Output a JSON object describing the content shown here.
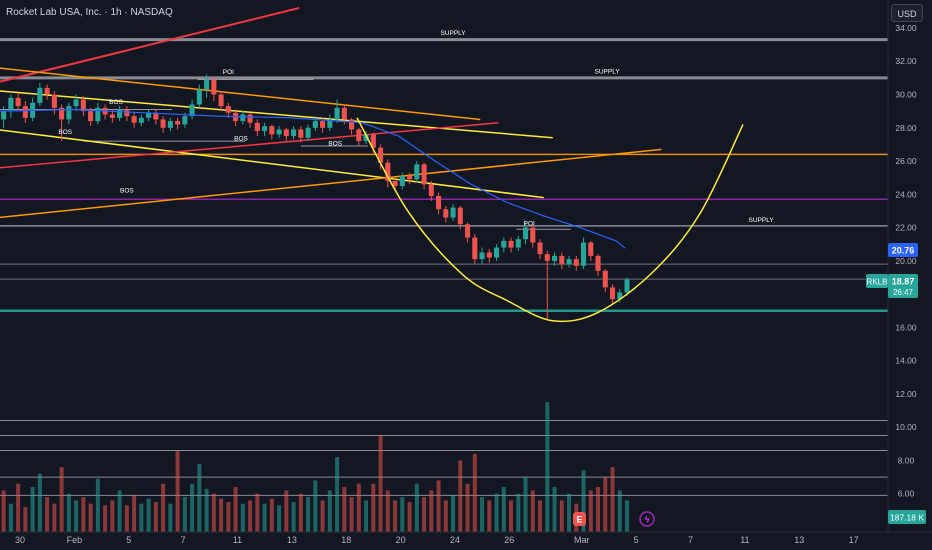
{
  "header": {
    "title": "Rocket Lab USA, Inc. · 1h · NASDAQ"
  },
  "currency": "USD",
  "colors": {
    "background": "#131722",
    "up": "#26a69a",
    "down": "#ef5350",
    "supply_line": "#9598a1",
    "orange_line": "#ff9800",
    "yellow_line": "#ffeb3b",
    "red_line": "#f23645",
    "magenta_line": "#9c27b0",
    "blue_ma": "#2962ff",
    "support_line": "#26a69a"
  },
  "chart_data": {
    "type": "candlestick",
    "symbol": "RKLB",
    "last_price": "18.87",
    "countdown": "26:47",
    "ma_value": "20.76",
    "y_axis": {
      "range": [
        4.6,
        35.2
      ],
      "ticks": [
        "34.00",
        "32.00",
        "30.00",
        "28.00",
        "26.00",
        "24.00",
        "22.00",
        "20.00",
        "18.00",
        "16.00",
        "14.00",
        "12.00",
        "10.00",
        "8.00",
        "6.00"
      ]
    },
    "x_axis": {
      "range": [
        0,
        49
      ],
      "ticks": [
        {
          "label": "30",
          "x": 0
        },
        {
          "label": "Feb",
          "x": 3
        },
        {
          "label": "5",
          "x": 6
        },
        {
          "label": "7",
          "x": 9
        },
        {
          "label": "11",
          "x": 12
        },
        {
          "label": "13",
          "x": 15
        },
        {
          "label": "18",
          "x": 18
        },
        {
          "label": "20",
          "x": 21
        },
        {
          "label": "24",
          "x": 24
        },
        {
          "label": "26",
          "x": 27
        },
        {
          "label": "Mar",
          "x": 31
        },
        {
          "label": "5",
          "x": 34
        },
        {
          "label": "7",
          "x": 37
        },
        {
          "label": "11",
          "x": 40
        },
        {
          "label": "13",
          "x": 43
        },
        {
          "label": "17",
          "x": 46
        }
      ]
    },
    "horizontal_levels": [
      {
        "y": 33.3,
        "color": "#9598a1",
        "width": 3
      },
      {
        "y": 31.0,
        "color": "#9598a1",
        "width": 3
      },
      {
        "y": 26.4,
        "color": "#ff9800",
        "width": 1.5
      },
      {
        "y": 23.7,
        "color": "#9c27b0",
        "width": 1.5
      },
      {
        "y": 22.1,
        "color": "#9598a1",
        "width": 1.5
      },
      {
        "y": 19.8,
        "color": "#787b86",
        "width": 1
      },
      {
        "y": 18.9,
        "color": "#787b86",
        "width": 1
      },
      {
        "y": 17.0,
        "color": "#26a69a",
        "width": 2.5
      },
      {
        "y": 10.4,
        "color": "#9598a1",
        "width": 1
      },
      {
        "y": 9.5,
        "color": "#9598a1",
        "width": 1
      },
      {
        "y": 8.6,
        "color": "#9598a1",
        "width": 1
      },
      {
        "y": 7.0,
        "color": "#9598a1",
        "width": 1
      },
      {
        "y": 5.9,
        "color": "#9598a1",
        "width": 1
      }
    ],
    "trend_lines": [
      {
        "x1": -1,
        "y1": 30.5,
        "x2": 16.5,
        "y2": 35.2,
        "color": "#f23645",
        "width": 2
      },
      {
        "x1": -1,
        "y1": 31.7,
        "x2": 26.5,
        "y2": 28.5,
        "color": "#ff9800",
        "width": 1.5
      },
      {
        "x1": -1,
        "y1": 30.3,
        "x2": 30.5,
        "y2": 27.4,
        "color": "#ffeb3b",
        "width": 1.5
      },
      {
        "x1": -1,
        "y1": 28.0,
        "x2": 30.0,
        "y2": 23.8,
        "color": "#ffeb3b",
        "width": 1.5
      },
      {
        "x1": -1,
        "y1": 25.5,
        "x2": 27.5,
        "y2": 28.3,
        "color": "#f23645",
        "width": 1.5
      },
      {
        "x1": -1,
        "y1": 22.5,
        "x2": 36.5,
        "y2": 26.7,
        "color": "#ff9800",
        "width": 1.5
      }
    ],
    "short_segments": [
      {
        "x1": 0,
        "y1": 29.1,
        "x2": 9.5,
        "y2": 29.1,
        "color": "#9598a1"
      },
      {
        "x1": 4.6,
        "y1": 27.2,
        "x2": 13.5,
        "y2": 27.2,
        "color": "#9598a1"
      },
      {
        "x1": 10.9,
        "y1": 30.9,
        "x2": 17.3,
        "y2": 30.9,
        "color": "#9598a1"
      },
      {
        "x1": 16.6,
        "y1": 26.9,
        "x2": 20.3,
        "y2": 26.9,
        "color": "#9598a1"
      },
      {
        "x1": 28.5,
        "y1": 21.9,
        "x2": 31.5,
        "y2": 21.9,
        "color": "#9598a1"
      }
    ],
    "annotations": [
      {
        "text": "SUPPLY",
        "x": 25,
        "y": 33.45
      },
      {
        "text": "SUPPLY",
        "x": 33.5,
        "y": 31.15
      },
      {
        "text": "SUPPLY",
        "x": 42,
        "y": 22.2
      },
      {
        "text": "POI",
        "x": 12.6,
        "y": 31.1
      },
      {
        "text": "POI",
        "x": 29.2,
        "y": 22.0
      },
      {
        "text": "BOS",
        "x": 6.4,
        "y": 29.3
      },
      {
        "text": "BOS",
        "x": 3.6,
        "y": 27.5
      },
      {
        "text": "BOS",
        "x": 13.3,
        "y": 27.1
      },
      {
        "text": "BOS",
        "x": 18.5,
        "y": 26.8
      },
      {
        "text": "BOS",
        "x": 7.0,
        "y": 24.0
      }
    ],
    "cup_curve": [
      [
        19.7,
        28.6
      ],
      [
        22.5,
        23.0
      ],
      [
        25.5,
        19.2
      ],
      [
        28.0,
        17.6
      ],
      [
        30.5,
        16.4
      ],
      [
        33.0,
        16.9
      ],
      [
        36.0,
        19.3
      ],
      [
        38.6,
        22.8
      ],
      [
        41.0,
        28.2
      ]
    ],
    "ma_series": [
      [
        0,
        29.0
      ],
      [
        4,
        29.1
      ],
      [
        8,
        28.9
      ],
      [
        12,
        28.7
      ],
      [
        16,
        28.6
      ],
      [
        20,
        28.3
      ],
      [
        22,
        27.5
      ],
      [
        24,
        26.0
      ],
      [
        26,
        24.6
      ],
      [
        28,
        23.5
      ],
      [
        30,
        22.7
      ],
      [
        32,
        22.0
      ],
      [
        34,
        21.2
      ],
      [
        34.5,
        20.76
      ]
    ],
    "candles": [
      [
        0.2,
        28.5,
        29.0,
        28.0,
        29.3
      ],
      [
        0.6,
        29.0,
        29.8,
        28.6,
        30.0
      ],
      [
        1.0,
        29.8,
        29.3,
        29.0,
        30.1
      ],
      [
        1.4,
        29.3,
        28.6,
        28.3,
        29.6
      ],
      [
        1.8,
        28.6,
        29.5,
        28.4,
        29.8
      ],
      [
        2.2,
        29.5,
        30.4,
        29.3,
        30.7
      ],
      [
        2.6,
        30.4,
        30.0,
        29.7,
        30.6
      ],
      [
        3.0,
        30.0,
        29.2,
        28.8,
        30.2
      ],
      [
        3.4,
        29.2,
        28.5,
        27.2,
        29.4
      ],
      [
        3.8,
        28.5,
        29.3,
        28.2,
        29.5
      ],
      [
        4.2,
        29.3,
        29.7,
        29.0,
        30.0
      ],
      [
        4.6,
        29.7,
        29.0,
        28.7,
        29.9
      ],
      [
        5.0,
        29.0,
        28.4,
        28.1,
        29.2
      ],
      [
        5.4,
        28.4,
        29.2,
        28.2,
        29.5
      ],
      [
        5.8,
        29.2,
        28.8,
        28.5,
        29.4
      ],
      [
        6.2,
        28.8,
        28.6,
        28.3,
        29.1
      ],
      [
        6.6,
        28.6,
        29.1,
        28.4,
        29.3
      ],
      [
        7.0,
        29.1,
        28.7,
        28.4,
        29.3
      ],
      [
        7.4,
        28.7,
        28.3,
        28.0,
        28.9
      ],
      [
        7.8,
        28.3,
        28.6,
        28.1,
        28.8
      ],
      [
        8.2,
        28.6,
        28.9,
        28.4,
        29.1
      ],
      [
        8.6,
        28.9,
        28.5,
        28.2,
        29.1
      ],
      [
        9.0,
        28.5,
        28.0,
        27.7,
        28.7
      ],
      [
        9.4,
        28.0,
        28.4,
        27.8,
        28.6
      ],
      [
        9.8,
        28.4,
        28.2,
        27.9,
        28.6
      ],
      [
        10.2,
        28.2,
        28.7,
        28.0,
        28.9
      ],
      [
        10.6,
        28.7,
        29.4,
        28.5,
        29.7
      ],
      [
        11.0,
        29.4,
        30.3,
        29.2,
        30.6
      ],
      [
        11.4,
        30.3,
        30.9,
        29.8,
        31.2
      ],
      [
        11.8,
        30.9,
        30.0,
        29.6,
        31.0
      ],
      [
        12.2,
        30.0,
        29.3,
        29.0,
        30.2
      ],
      [
        12.6,
        29.3,
        28.9,
        28.6,
        29.5
      ],
      [
        13.0,
        28.9,
        28.4,
        28.1,
        29.1
      ],
      [
        13.4,
        28.4,
        28.8,
        28.2,
        29.0
      ],
      [
        13.8,
        28.8,
        28.3,
        28.0,
        28.9
      ],
      [
        14.2,
        28.3,
        27.8,
        27.5,
        28.5
      ],
      [
        14.6,
        27.8,
        28.1,
        27.5,
        28.3
      ],
      [
        15.0,
        28.1,
        27.6,
        27.3,
        28.2
      ],
      [
        15.4,
        27.6,
        27.9,
        27.4,
        28.1
      ],
      [
        15.8,
        27.9,
        27.5,
        27.2,
        28.0
      ],
      [
        16.2,
        27.5,
        27.9,
        27.3,
        28.1
      ],
      [
        16.6,
        27.9,
        27.4,
        27.1,
        28.1
      ],
      [
        17.0,
        27.4,
        28.0,
        27.2,
        28.2
      ],
      [
        17.4,
        28.0,
        28.4,
        27.8,
        28.7
      ],
      [
        17.8,
        28.4,
        28.0,
        27.7,
        28.6
      ],
      [
        18.2,
        28.0,
        28.5,
        27.8,
        28.8
      ],
      [
        18.6,
        28.5,
        29.2,
        28.3,
        29.7
      ],
      [
        19.0,
        29.2,
        28.5,
        28.2,
        29.3
      ],
      [
        19.4,
        28.5,
        27.9,
        27.6,
        28.6
      ],
      [
        19.8,
        27.9,
        27.2,
        26.9,
        28.0
      ],
      [
        20.2,
        27.2,
        27.6,
        27.0,
        27.8
      ],
      [
        20.6,
        27.6,
        26.8,
        26.5,
        27.7
      ],
      [
        21.0,
        26.8,
        25.9,
        25.5,
        27.0
      ],
      [
        21.4,
        25.9,
        24.8,
        24.4,
        26.1
      ],
      [
        21.8,
        24.8,
        24.5,
        24.2,
        25.0
      ],
      [
        22.2,
        24.5,
        25.1,
        24.3,
        25.3
      ],
      [
        22.6,
        25.1,
        24.9,
        24.6,
        25.3
      ],
      [
        23.0,
        24.9,
        25.8,
        24.7,
        26.0
      ],
      [
        23.4,
        25.8,
        24.6,
        24.3,
        25.9
      ],
      [
        23.8,
        24.6,
        23.9,
        23.6,
        24.8
      ],
      [
        24.2,
        23.9,
        23.1,
        22.8,
        24.1
      ],
      [
        24.6,
        23.1,
        22.6,
        22.3,
        23.3
      ],
      [
        25.0,
        22.6,
        23.2,
        22.4,
        23.4
      ],
      [
        25.4,
        23.2,
        22.2,
        21.9,
        23.3
      ],
      [
        25.8,
        22.2,
        21.4,
        21.1,
        22.3
      ],
      [
        26.2,
        21.4,
        20.1,
        19.8,
        21.6
      ],
      [
        26.6,
        20.1,
        20.5,
        19.8,
        20.8
      ],
      [
        27.0,
        20.5,
        20.2,
        19.9,
        20.7
      ],
      [
        27.4,
        20.2,
        20.8,
        20.0,
        21.0
      ],
      [
        27.8,
        20.8,
        21.2,
        20.5,
        21.4
      ],
      [
        28.2,
        21.2,
        20.8,
        20.5,
        21.4
      ],
      [
        28.6,
        20.8,
        21.3,
        20.6,
        21.5
      ],
      [
        29.0,
        21.3,
        22.0,
        21.0,
        22.3
      ],
      [
        29.4,
        22.0,
        21.1,
        20.8,
        22.2
      ],
      [
        29.8,
        21.1,
        20.4,
        20.1,
        21.3
      ],
      [
        30.2,
        20.4,
        20.0,
        16.4,
        20.6
      ],
      [
        30.6,
        20.0,
        20.3,
        19.7,
        20.5
      ],
      [
        31.0,
        20.3,
        19.8,
        19.5,
        20.5
      ],
      [
        31.4,
        19.8,
        20.1,
        19.6,
        20.3
      ],
      [
        31.8,
        20.1,
        19.7,
        19.4,
        20.3
      ],
      [
        32.2,
        19.7,
        21.1,
        19.5,
        21.4
      ],
      [
        32.6,
        21.1,
        20.3,
        20.0,
        21.2
      ],
      [
        33.0,
        20.3,
        19.4,
        19.1,
        20.4
      ],
      [
        33.4,
        19.4,
        18.4,
        18.1,
        19.5
      ],
      [
        33.8,
        18.4,
        17.7,
        17.4,
        18.6
      ],
      [
        34.2,
        17.7,
        18.1,
        17.5,
        18.3
      ],
      [
        34.6,
        18.1,
        18.87,
        17.9,
        19.0
      ]
    ],
    "volume": [
      [
        0.2,
        6.2,
        0
      ],
      [
        0.6,
        5.4,
        1
      ],
      [
        1.0,
        6.6,
        0
      ],
      [
        1.4,
        5.2,
        0
      ],
      [
        1.8,
        6.4,
        1
      ],
      [
        2.2,
        7.2,
        1
      ],
      [
        2.6,
        5.8,
        0
      ],
      [
        3.0,
        5.4,
        0
      ],
      [
        3.4,
        7.6,
        0
      ],
      [
        3.8,
        6.0,
        1
      ],
      [
        4.2,
        5.6,
        1
      ],
      [
        4.6,
        5.8,
        0
      ],
      [
        5.0,
        5.4,
        0
      ],
      [
        5.4,
        6.9,
        1
      ],
      [
        5.8,
        5.3,
        0
      ],
      [
        6.2,
        5.6,
        0
      ],
      [
        6.6,
        6.2,
        1
      ],
      [
        7.0,
        5.3,
        0
      ],
      [
        7.4,
        5.9,
        0
      ],
      [
        7.8,
        5.4,
        1
      ],
      [
        8.2,
        5.7,
        1
      ],
      [
        8.6,
        5.5,
        0
      ],
      [
        9.0,
        6.6,
        0
      ],
      [
        9.4,
        5.4,
        1
      ],
      [
        9.8,
        8.6,
        0
      ],
      [
        10.2,
        5.8,
        1
      ],
      [
        10.6,
        6.6,
        1
      ],
      [
        11.0,
        7.8,
        1
      ],
      [
        11.4,
        6.3,
        1
      ],
      [
        11.8,
        6.0,
        0
      ],
      [
        12.2,
        5.7,
        0
      ],
      [
        12.6,
        5.5,
        0
      ],
      [
        13.0,
        6.4,
        0
      ],
      [
        13.4,
        5.4,
        1
      ],
      [
        13.8,
        5.6,
        0
      ],
      [
        14.2,
        6.0,
        0
      ],
      [
        14.6,
        5.4,
        1
      ],
      [
        15.0,
        5.7,
        0
      ],
      [
        15.4,
        5.3,
        1
      ],
      [
        15.8,
        6.2,
        0
      ],
      [
        16.2,
        5.5,
        1
      ],
      [
        16.6,
        6.0,
        0
      ],
      [
        17.0,
        5.8,
        1
      ],
      [
        17.4,
        6.8,
        1
      ],
      [
        17.8,
        5.6,
        0
      ],
      [
        18.2,
        6.2,
        1
      ],
      [
        18.6,
        8.2,
        1
      ],
      [
        19.0,
        6.4,
        0
      ],
      [
        19.4,
        5.8,
        0
      ],
      [
        19.8,
        6.6,
        0
      ],
      [
        20.2,
        5.6,
        1
      ],
      [
        20.6,
        6.6,
        0
      ],
      [
        21.0,
        9.5,
        0
      ],
      [
        21.4,
        6.2,
        0
      ],
      [
        21.8,
        5.6,
        0
      ],
      [
        22.2,
        5.8,
        1
      ],
      [
        22.6,
        5.5,
        0
      ],
      [
        23.0,
        6.6,
        1
      ],
      [
        23.4,
        5.8,
        0
      ],
      [
        23.8,
        6.2,
        0
      ],
      [
        24.2,
        6.8,
        0
      ],
      [
        24.6,
        5.6,
        0
      ],
      [
        25.0,
        5.9,
        1
      ],
      [
        25.4,
        8.0,
        0
      ],
      [
        25.8,
        6.6,
        0
      ],
      [
        26.2,
        8.4,
        0
      ],
      [
        26.6,
        5.8,
        1
      ],
      [
        27.0,
        5.6,
        0
      ],
      [
        27.4,
        6.0,
        1
      ],
      [
        27.8,
        6.4,
        1
      ],
      [
        28.2,
        5.6,
        0
      ],
      [
        28.6,
        6.0,
        1
      ],
      [
        29.0,
        7.0,
        1
      ],
      [
        29.4,
        6.2,
        0
      ],
      [
        29.8,
        5.6,
        0
      ],
      [
        30.2,
        11.5,
        1
      ],
      [
        30.6,
        6.4,
        1
      ],
      [
        31.0,
        5.6,
        0
      ],
      [
        31.4,
        6.0,
        1
      ],
      [
        31.8,
        5.4,
        0
      ],
      [
        32.2,
        7.4,
        1
      ],
      [
        32.6,
        6.2,
        0
      ],
      [
        33.0,
        6.4,
        0
      ],
      [
        33.4,
        7.0,
        0
      ],
      [
        33.8,
        7.6,
        0
      ],
      [
        34.2,
        6.2,
        1
      ],
      [
        34.6,
        5.6,
        1
      ]
    ],
    "volume_badge": "187.18 K"
  }
}
